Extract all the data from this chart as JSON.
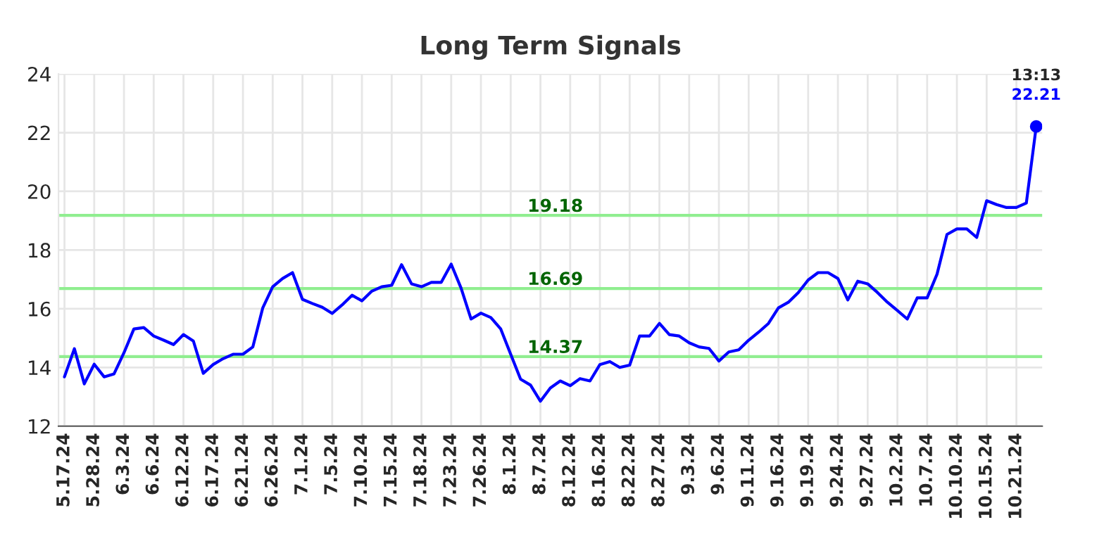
{
  "chart_data": {
    "type": "line",
    "title": "Long Term Signals",
    "categories": [
      "5.17.24",
      null,
      null,
      "5.28.24",
      null,
      null,
      "6.3.24",
      null,
      null,
      "6.6.24",
      null,
      null,
      "6.12.24",
      null,
      null,
      "6.17.24",
      null,
      null,
      "6.21.24",
      null,
      null,
      "6.26.24",
      null,
      null,
      "7.1.24",
      null,
      null,
      "7.5.24",
      null,
      null,
      "7.10.24",
      null,
      null,
      "7.15.24",
      null,
      null,
      "7.18.24",
      null,
      null,
      "7.23.24",
      null,
      null,
      "7.26.24",
      null,
      null,
      "8.1.24",
      null,
      null,
      "8.7.24",
      null,
      null,
      "8.12.24",
      null,
      null,
      "8.16.24",
      null,
      null,
      "8.22.24",
      null,
      null,
      "8.27.24",
      null,
      null,
      "9.3.24",
      null,
      null,
      "9.6.24",
      null,
      null,
      "9.11.24",
      null,
      null,
      "9.16.24",
      null,
      null,
      "9.19.24",
      null,
      null,
      "9.24.24",
      null,
      null,
      "9.27.24",
      null,
      null,
      "10.2.24",
      null,
      null,
      "10.7.24",
      null,
      null,
      "10.10.24",
      null,
      null,
      "10.15.24",
      null,
      null,
      "10.21.24",
      null,
      null
    ],
    "series": [
      {
        "color": "#0000ff",
        "values": [
          13.68,
          14.64,
          13.44,
          14.11,
          13.68,
          13.78,
          14.5,
          15.31,
          15.36,
          15.07,
          14.93,
          14.78,
          15.12,
          14.9,
          13.8,
          14.1,
          14.3,
          14.45,
          14.45,
          14.7,
          16.03,
          16.75,
          17.03,
          17.23,
          16.32,
          16.18,
          16.05,
          15.84,
          16.13,
          16.46,
          16.27,
          16.6,
          16.75,
          16.8,
          17.5,
          16.85,
          16.75,
          16.9,
          16.9,
          17.52,
          16.7,
          15.65,
          15.85,
          15.7,
          15.31,
          14.45,
          13.6,
          13.4,
          12.85,
          13.3,
          13.54,
          13.38,
          13.62,
          13.54,
          14.1,
          14.2,
          14.0,
          14.08,
          15.07,
          15.07,
          15.5,
          15.12,
          15.07,
          14.84,
          14.7,
          14.65,
          14.22,
          14.53,
          14.6,
          14.93,
          15.2,
          15.5,
          16.03,
          16.22,
          16.55,
          16.98,
          17.23,
          17.23,
          17.03,
          16.3,
          16.94,
          16.85,
          16.55,
          16.22,
          15.94,
          15.65,
          16.37,
          16.37,
          17.18,
          18.53,
          18.72,
          18.72,
          18.43,
          19.68,
          19.55,
          19.45,
          19.45,
          19.6,
          22.21
        ]
      },
      {
        "type": "scatter",
        "color": "#0000ff",
        "values": [
          null,
          null,
          null,
          null,
          null,
          null,
          null,
          null,
          null,
          null,
          null,
          null,
          null,
          null,
          null,
          null,
          null,
          null,
          null,
          null,
          null,
          null,
          null,
          null,
          null,
          null,
          null,
          null,
          null,
          null,
          null,
          null,
          null,
          null,
          null,
          null,
          null,
          null,
          null,
          null,
          null,
          null,
          null,
          null,
          null,
          null,
          null,
          null,
          null,
          null,
          null,
          null,
          null,
          null,
          null,
          null,
          null,
          null,
          null,
          null,
          null,
          null,
          null,
          null,
          null,
          null,
          null,
          null,
          null,
          null,
          null,
          null,
          null,
          null,
          null,
          null,
          null,
          null,
          null,
          null,
          null,
          null,
          null,
          null,
          null,
          null,
          null,
          null,
          null,
          null,
          null,
          null,
          null,
          null,
          null,
          null,
          null,
          null,
          22.21
        ],
        "value_labels": [
          null,
          null,
          null,
          null,
          null,
          null,
          null,
          null,
          null,
          null,
          null,
          null,
          null,
          null,
          null,
          null,
          null,
          null,
          null,
          null,
          null,
          null,
          null,
          null,
          null,
          null,
          null,
          null,
          null,
          null,
          null,
          null,
          null,
          null,
          null,
          null,
          null,
          null,
          null,
          null,
          null,
          null,
          null,
          null,
          null,
          null,
          null,
          null,
          null,
          null,
          null,
          null,
          null,
          null,
          null,
          null,
          null,
          null,
          null,
          null,
          null,
          null,
          null,
          null,
          null,
          null,
          null,
          null,
          null,
          null,
          null,
          null,
          null,
          null,
          null,
          null,
          null,
          null,
          null,
          null,
          null,
          null,
          null,
          null,
          null,
          null,
          null,
          null,
          null,
          null,
          null,
          null,
          null,
          null,
          null,
          null,
          null,
          null,
          "22.21"
        ]
      }
    ],
    "annotations": [
      {
        "text": "13:13",
        "y": 22.21
      }
    ],
    "ylim": [
      12,
      24
    ],
    "yticks": [
      12,
      14,
      16,
      18,
      20,
      22,
      24
    ],
    "grid": true,
    "ref_lines": [
      {
        "axis": "y",
        "value": 19.18,
        "label": "19.18",
        "color": "#90ee90"
      },
      {
        "axis": "y",
        "value": 16.69,
        "label": "16.69",
        "color": "#90ee90"
      },
      {
        "axis": "y",
        "value": 14.37,
        "label": "14.37",
        "color": "#90ee90"
      }
    ]
  }
}
